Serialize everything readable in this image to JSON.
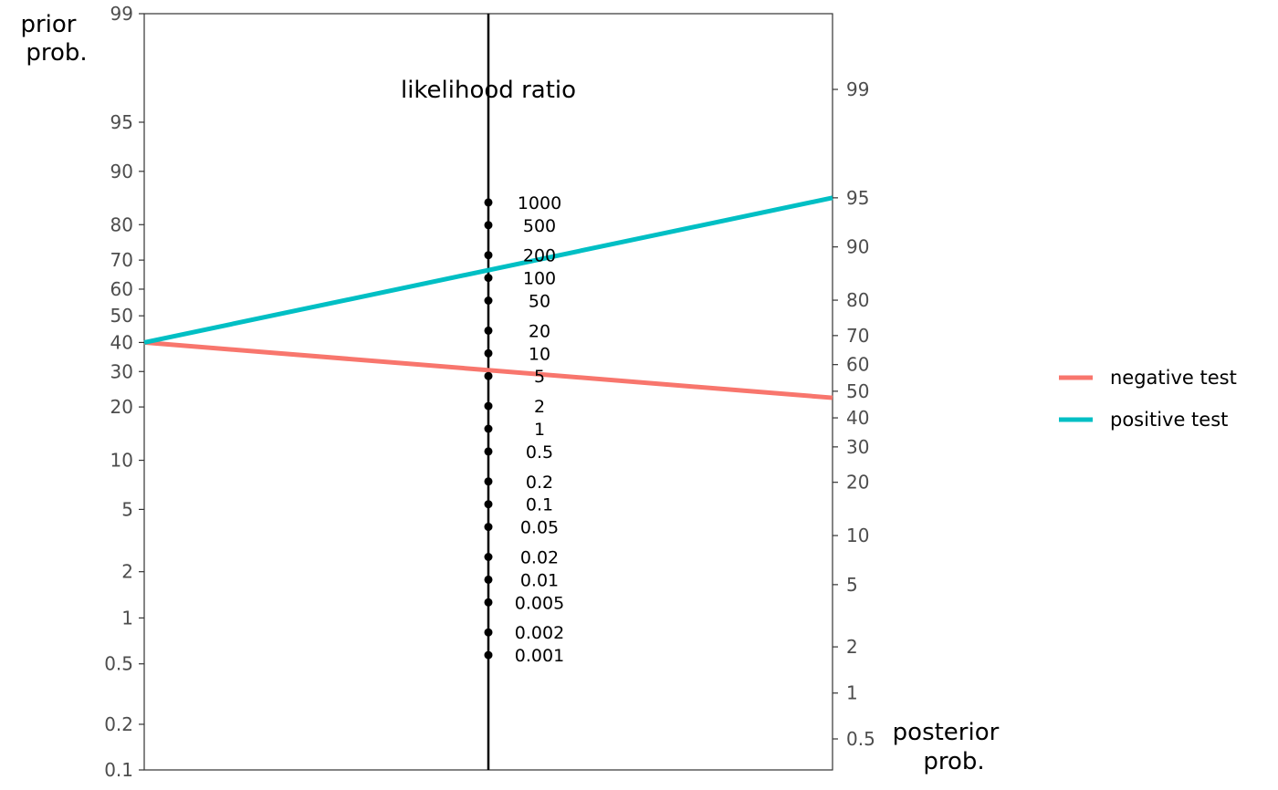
{
  "chart_data": {
    "type": "line",
    "title": "",
    "prior_axis": {
      "title_lines": [
        "prior",
        "prob."
      ],
      "ticks": [
        0.1,
        0.2,
        0.5,
        1,
        2,
        5,
        10,
        20,
        30,
        40,
        50,
        60,
        70,
        80,
        90,
        95,
        99
      ],
      "tick_labels": [
        "0.1",
        "0.2",
        "0.5",
        "1",
        "2",
        "5",
        "10",
        "20",
        "30",
        "40",
        "50",
        "60",
        "70",
        "80",
        "90",
        "95",
        "99"
      ]
    },
    "likelihood_ratio_axis": {
      "title": "likelihood ratio",
      "ticks": [
        1000,
        500,
        200,
        100,
        50,
        20,
        10,
        5,
        2,
        1,
        0.5,
        0.2,
        0.1,
        0.05,
        0.02,
        0.01,
        0.005,
        0.002,
        0.001
      ],
      "tick_labels": [
        "1000",
        "500",
        "200",
        "100",
        "50",
        "20",
        "10",
        "5",
        "2",
        "1",
        "0.5",
        "0.2",
        "0.1",
        "0.05",
        "0.02",
        "0.01",
        "0.005",
        "0.002",
        "0.001"
      ]
    },
    "posterior_axis": {
      "title_lines": [
        "posterior",
        "prob."
      ],
      "ticks": [
        99,
        95,
        90,
        80,
        70,
        60,
        50,
        40,
        30,
        20,
        10,
        5,
        2,
        1,
        0.5
      ],
      "tick_labels": [
        "99",
        "95",
        "90",
        "80",
        "70",
        "60",
        "50",
        "40",
        "30",
        "20",
        "10",
        "5",
        "2",
        "1",
        "0.5"
      ]
    },
    "series": [
      {
        "name": "negative test",
        "color": "#F8766D",
        "prior": 40,
        "posterior": 47.5
      },
      {
        "name": "positive test",
        "color": "#00BFC4",
        "prior": 40,
        "posterior": 95
      }
    ],
    "legend_position": "right"
  }
}
